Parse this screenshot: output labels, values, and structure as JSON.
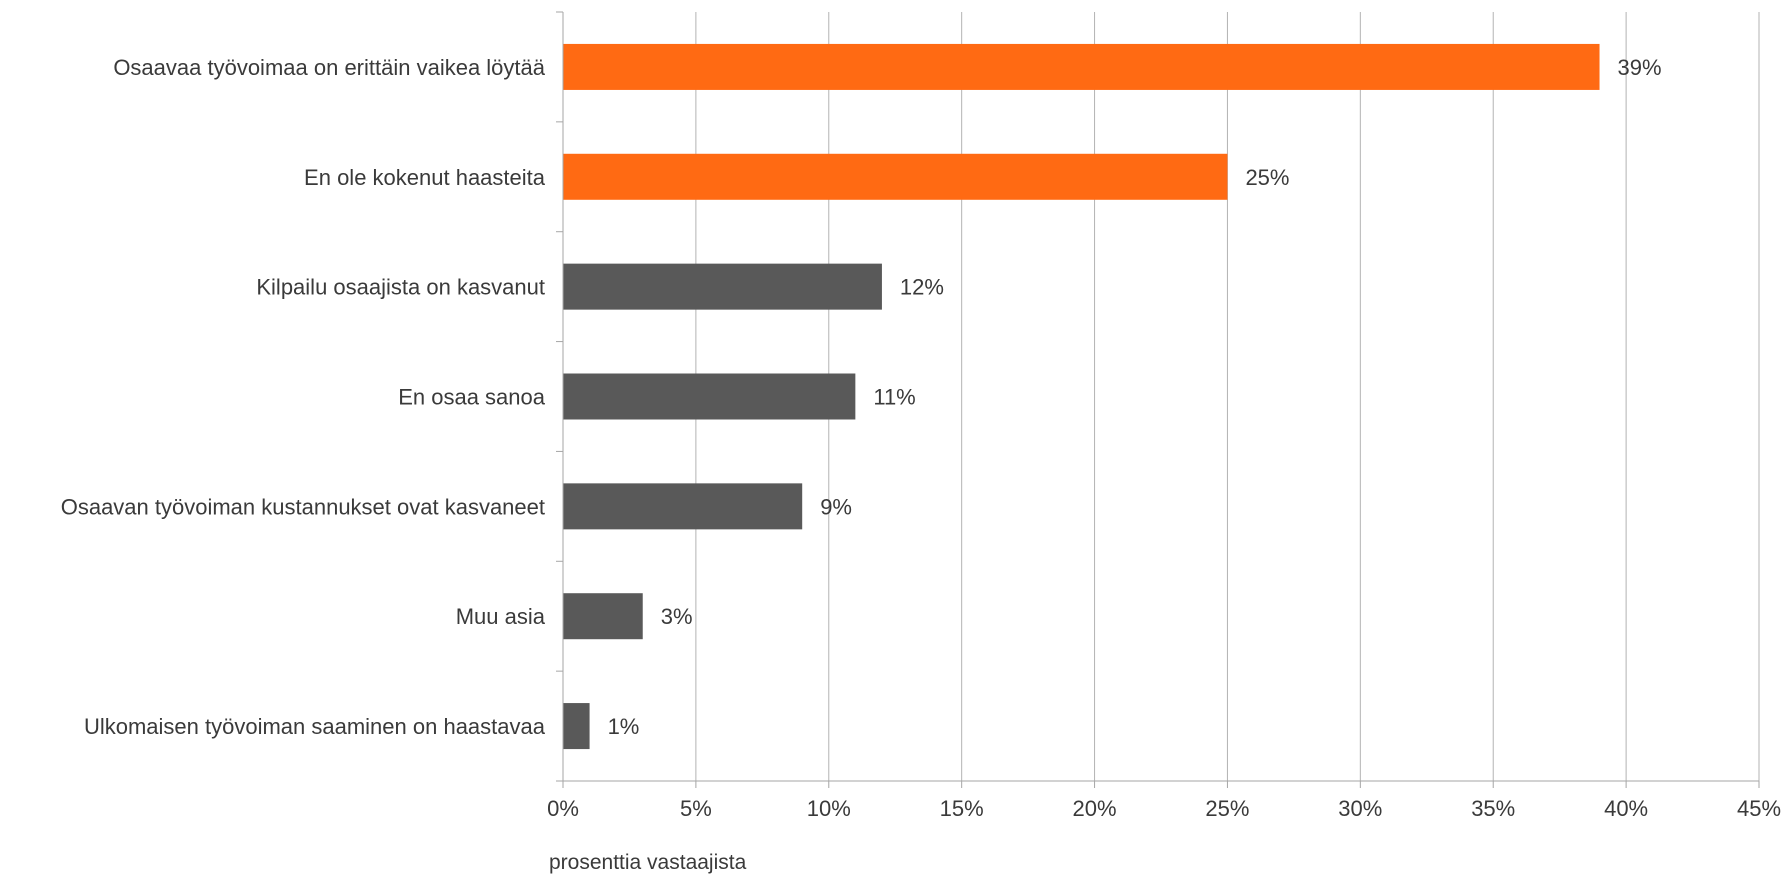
{
  "chart_data": {
    "type": "bar",
    "orientation": "horizontal",
    "categories": [
      "Osaavaa työvoimaa on erittäin vaikea löytää",
      "En ole kokenut haasteita",
      "Kilpailu osaajista on kasvanut",
      "En osaa sanoa",
      "Osaavan työvoiman kustannukset ovat kasvaneet",
      "Muu asia",
      "Ulkomaisen työvoiman saaminen on haastavaa"
    ],
    "values": [
      39,
      25,
      12,
      11,
      9,
      3,
      1
    ],
    "value_labels": [
      "39%",
      "25%",
      "12%",
      "11%",
      "9%",
      "3%",
      "1%"
    ],
    "highlighted": [
      true,
      true,
      false,
      false,
      false,
      false,
      false
    ],
    "xlabel": "prosenttia vastaajista",
    "ylabel": "",
    "xlim": [
      0,
      45
    ],
    "x_ticks": [
      0,
      5,
      10,
      15,
      20,
      25,
      30,
      35,
      40,
      45
    ],
    "x_tick_labels": [
      "0%",
      "5%",
      "10%",
      "15%",
      "20%",
      "25%",
      "30%",
      "35%",
      "40%",
      "45%"
    ],
    "grid": true,
    "legend": "none",
    "colors": {
      "highlight": "#ff6a13",
      "default": "#595959",
      "grid": "#b3b3b3",
      "axis": "#a6a6a6",
      "text": "#3a3a3a"
    }
  }
}
